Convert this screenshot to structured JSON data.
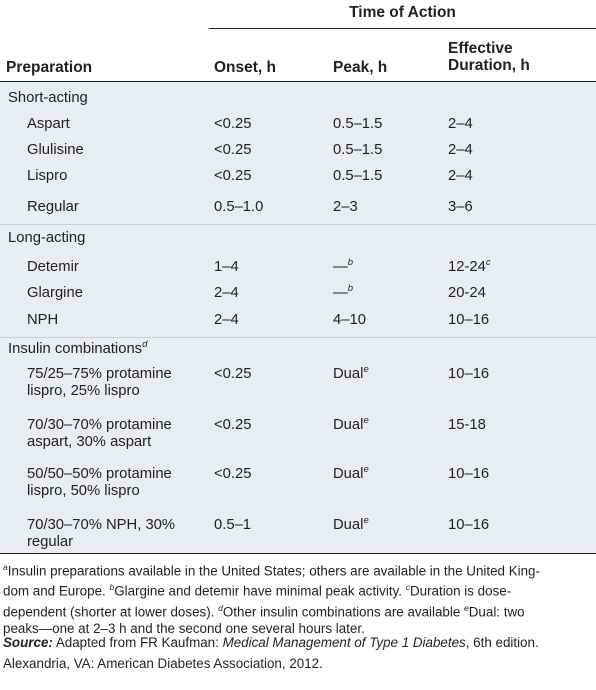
{
  "header": {
    "time_of_action": "Time of Action",
    "preparation": "Preparation",
    "onset": "Onset, h",
    "peak": "Peak, h",
    "effective_line1": "Effective",
    "effective_line2": "Duration, h"
  },
  "groups": [
    {
      "title": "Short-acting",
      "rows": [
        {
          "name": "Aspart",
          "onset": "<0.25",
          "peak": "0.5–1.5",
          "duration": "2–4"
        },
        {
          "name": "Glulisine",
          "onset": "<0.25",
          "peak": "0.5–1.5",
          "duration": "2–4"
        },
        {
          "name": "Lispro",
          "onset": "<0.25",
          "peak": "0.5–1.5",
          "duration": "2–4"
        },
        {
          "name": "Regular",
          "onset": "0.5–1.0",
          "peak": "2–3",
          "duration": "3–6"
        }
      ]
    },
    {
      "title": "Long-acting",
      "rows": [
        {
          "name": "Detemir",
          "onset": "1–4",
          "peak": "—",
          "peak_sup": "b",
          "duration": "12-24",
          "duration_sup": "c"
        },
        {
          "name": "Glargine",
          "onset": "2–4",
          "peak": "—",
          "peak_sup": "b",
          "duration": "20-24"
        },
        {
          "name": "NPH",
          "onset": "2–4",
          "peak": "4–10",
          "duration": "10–16"
        }
      ]
    },
    {
      "title": "Insulin combinations",
      "title_sup": "d",
      "rows": [
        {
          "name_line1": "75/25–75% protamine",
          "name_line2": "lispro, 25% lispro",
          "onset": "<0.25",
          "peak": "Dual",
          "peak_sup": "e",
          "duration": "10–16"
        },
        {
          "name_line1": "70/30–70% protamine",
          "name_line2": "aspart, 30% aspart",
          "onset": "<0.25",
          "peak": "Dual",
          "peak_sup": "e",
          "duration": "15-18"
        },
        {
          "name_line1": "50/50–50% protamine",
          "name_line2": "lispro, 50% lispro",
          "onset": "<0.25",
          "peak": "Dual",
          "peak_sup": "e",
          "duration": "10–16"
        },
        {
          "name_line1": "70/30–70% NPH, 30%",
          "name_line2": "regular",
          "onset": "0.5–1",
          "peak": "Dual",
          "peak_sup": "e",
          "duration": "10–16"
        }
      ]
    }
  ],
  "footnotes": {
    "a_mark": "a",
    "a_text": "Insulin preparations available in the United States; others are available in the United King-",
    "line2": "dom and Europe. ",
    "b_mark": "b",
    "b_text": "Glargine and detemir have minimal peak activity. ",
    "c_mark": "c",
    "c_text": "Duration is dose-",
    "line3": "dependent (shorter at lower doses). ",
    "d_mark": "d",
    "d_text": "Other insulin combinations are available ",
    "e_mark": "e",
    "e_text": "Dual: two",
    "line4": "peaks—one at 2–3 h and the second one several hours later."
  },
  "source": {
    "label": "Source:",
    "text_pre": " Adapted from FR Kaufman: ",
    "book": "Medical Management of Type 1 Diabetes",
    "text_post": ", 6th edition.",
    "line2": "Alexandria, VA: American Diabetes Association, 2012."
  }
}
